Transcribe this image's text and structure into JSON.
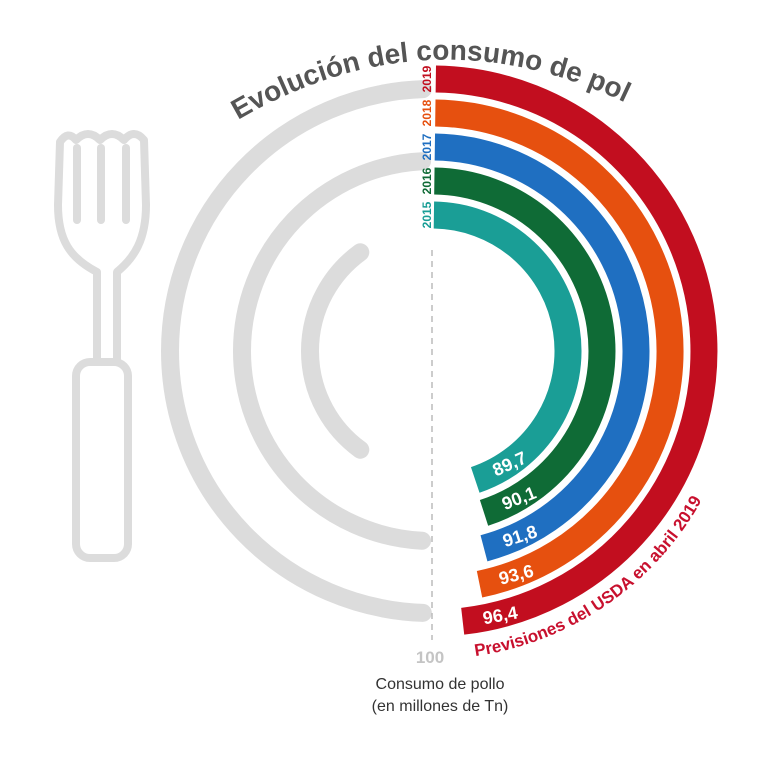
{
  "chart_data": {
    "type": "radial-bar",
    "title": "Evolución del consumo de pollo",
    "scale_max_label": "100",
    "xlim": [
      0,
      100
    ],
    "axis_caption_line1": "Consumo de pollo",
    "axis_caption_line2": "(en millones de Tn)",
    "annotation": "Previsiones del USDA en abril 2019",
    "annotation_color": "#c8102e",
    "categories": [
      "2015",
      "2016",
      "2017",
      "2018",
      "2019"
    ],
    "values": [
      89.7,
      90.1,
      91.8,
      93.6,
      96.4
    ],
    "value_labels": [
      "89,7",
      "90,1",
      "91,8",
      "93,6",
      "96,4"
    ],
    "colors": [
      "#1a9e96",
      "#0f6b36",
      "#1f6fc1",
      "#e6500f",
      "#c20e1f"
    ],
    "decoration": [
      "plate-icon",
      "fork-icon"
    ]
  }
}
